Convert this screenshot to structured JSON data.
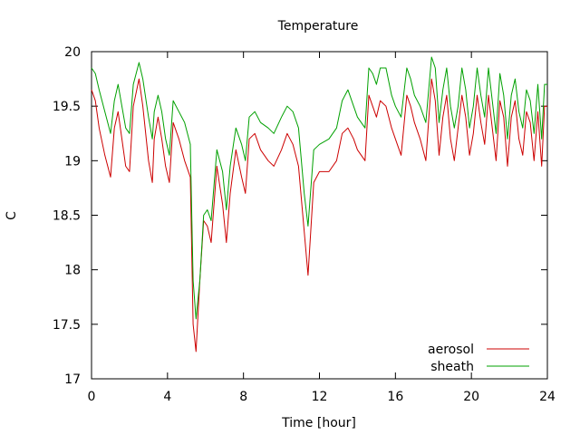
{
  "chart_data": {
    "type": "line",
    "title": "Temperature",
    "xlabel": "Time [hour]",
    "ylabel": "C",
    "xlim": [
      0,
      24
    ],
    "ylim": [
      17,
      20
    ],
    "xticks": [
      0,
      4,
      8,
      12,
      16,
      20,
      24
    ],
    "yticks": [
      17,
      17.5,
      18,
      18.5,
      19,
      19.5,
      20
    ],
    "xtick_labels": [
      "0",
      "4",
      "8",
      "12",
      "16",
      "20",
      "24"
    ],
    "ytick_labels": [
      "17",
      "17.5",
      "18",
      "18.5",
      "19",
      "19.5",
      "20"
    ],
    "grid": false,
    "legend_position": "bottom-right",
    "series": [
      {
        "name": "aerosol",
        "color": "#cc0000",
        "x": [
          0,
          0.2,
          0.4,
          0.7,
          1.0,
          1.2,
          1.4,
          1.6,
          1.8,
          2.0,
          2.2,
          2.5,
          2.7,
          3.0,
          3.2,
          3.3,
          3.5,
          3.7,
          3.9,
          4.1,
          4.3,
          4.6,
          4.9,
          5.2,
          5.35,
          5.5,
          5.7,
          5.9,
          6.1,
          6.3,
          6.6,
          6.9,
          7.1,
          7.3,
          7.6,
          7.9,
          8.1,
          8.3,
          8.6,
          8.9,
          9.3,
          9.6,
          10.0,
          10.3,
          10.6,
          10.9,
          11.2,
          11.4,
          11.7,
          12.0,
          12.5,
          12.9,
          13.2,
          13.5,
          13.8,
          14.0,
          14.2,
          14.4,
          14.6,
          14.8,
          15.0,
          15.2,
          15.5,
          15.8,
          16.0,
          16.3,
          16.6,
          16.8,
          17.0,
          17.3,
          17.6,
          17.9,
          18.1,
          18.3,
          18.5,
          18.7,
          18.9,
          19.1,
          19.3,
          19.5,
          19.7,
          19.9,
          20.1,
          20.3,
          20.5,
          20.7,
          20.9,
          21.1,
          21.3,
          21.5,
          21.7,
          21.9,
          22.1,
          22.3,
          22.5,
          22.7,
          22.9,
          23.1,
          23.3,
          23.5,
          23.7,
          23.85,
          24.0
        ],
        "values": [
          19.65,
          19.55,
          19.3,
          19.05,
          18.85,
          19.3,
          19.45,
          19.2,
          18.95,
          18.9,
          19.5,
          19.75,
          19.5,
          19.0,
          18.8,
          19.2,
          19.4,
          19.2,
          18.95,
          18.8,
          19.35,
          19.2,
          19.0,
          18.85,
          17.5,
          17.25,
          17.9,
          18.45,
          18.4,
          18.25,
          18.95,
          18.6,
          18.25,
          18.7,
          19.1,
          18.85,
          18.7,
          19.2,
          19.25,
          19.1,
          19.0,
          18.95,
          19.1,
          19.25,
          19.15,
          18.95,
          18.35,
          17.95,
          18.8,
          18.9,
          18.9,
          19.0,
          19.25,
          19.3,
          19.2,
          19.1,
          19.05,
          19.0,
          19.6,
          19.5,
          19.4,
          19.55,
          19.5,
          19.3,
          19.2,
          19.05,
          19.6,
          19.5,
          19.35,
          19.2,
          19.0,
          19.75,
          19.55,
          19.05,
          19.4,
          19.6,
          19.2,
          19.0,
          19.3,
          19.6,
          19.4,
          19.05,
          19.25,
          19.6,
          19.35,
          19.15,
          19.6,
          19.3,
          19.0,
          19.55,
          19.4,
          18.95,
          19.4,
          19.55,
          19.2,
          19.05,
          19.45,
          19.35,
          19.0,
          19.45,
          18.95,
          19.5,
          19.5
        ]
      },
      {
        "name": "sheath",
        "color": "#00a000",
        "x": [
          0,
          0.2,
          0.4,
          0.7,
          1.0,
          1.2,
          1.4,
          1.6,
          1.8,
          2.0,
          2.2,
          2.5,
          2.7,
          3.0,
          3.2,
          3.3,
          3.5,
          3.7,
          3.9,
          4.1,
          4.3,
          4.6,
          4.9,
          5.2,
          5.35,
          5.5,
          5.7,
          5.9,
          6.1,
          6.3,
          6.6,
          6.9,
          7.1,
          7.3,
          7.6,
          7.9,
          8.1,
          8.3,
          8.6,
          8.9,
          9.3,
          9.6,
          10.0,
          10.3,
          10.6,
          10.9,
          11.2,
          11.4,
          11.7,
          12.0,
          12.5,
          12.9,
          13.2,
          13.5,
          13.8,
          14.0,
          14.2,
          14.4,
          14.6,
          14.8,
          15.0,
          15.2,
          15.5,
          15.8,
          16.0,
          16.3,
          16.6,
          16.8,
          17.0,
          17.3,
          17.6,
          17.9,
          18.1,
          18.3,
          18.5,
          18.7,
          18.9,
          19.1,
          19.3,
          19.5,
          19.7,
          19.9,
          20.1,
          20.3,
          20.5,
          20.7,
          20.9,
          21.1,
          21.3,
          21.5,
          21.7,
          21.9,
          22.1,
          22.3,
          22.5,
          22.7,
          22.9,
          23.1,
          23.3,
          23.5,
          23.7,
          23.85,
          24.0
        ],
        "values": [
          19.85,
          19.8,
          19.65,
          19.45,
          19.25,
          19.55,
          19.7,
          19.5,
          19.3,
          19.25,
          19.7,
          19.9,
          19.75,
          19.4,
          19.2,
          19.45,
          19.6,
          19.45,
          19.2,
          19.05,
          19.55,
          19.45,
          19.35,
          19.15,
          17.9,
          17.55,
          17.9,
          18.5,
          18.55,
          18.45,
          19.1,
          18.9,
          18.55,
          18.95,
          19.3,
          19.15,
          19.0,
          19.4,
          19.45,
          19.35,
          19.3,
          19.25,
          19.4,
          19.5,
          19.45,
          19.3,
          18.7,
          18.4,
          19.1,
          19.15,
          19.2,
          19.3,
          19.55,
          19.65,
          19.5,
          19.4,
          19.35,
          19.3,
          19.85,
          19.8,
          19.7,
          19.85,
          19.85,
          19.6,
          19.5,
          19.4,
          19.85,
          19.75,
          19.6,
          19.5,
          19.35,
          19.95,
          19.85,
          19.35,
          19.65,
          19.85,
          19.5,
          19.3,
          19.5,
          19.85,
          19.65,
          19.3,
          19.5,
          19.85,
          19.6,
          19.4,
          19.85,
          19.55,
          19.25,
          19.8,
          19.6,
          19.2,
          19.6,
          19.75,
          19.45,
          19.3,
          19.65,
          19.55,
          19.25,
          19.7,
          19.2,
          19.7,
          19.7
        ]
      }
    ]
  }
}
